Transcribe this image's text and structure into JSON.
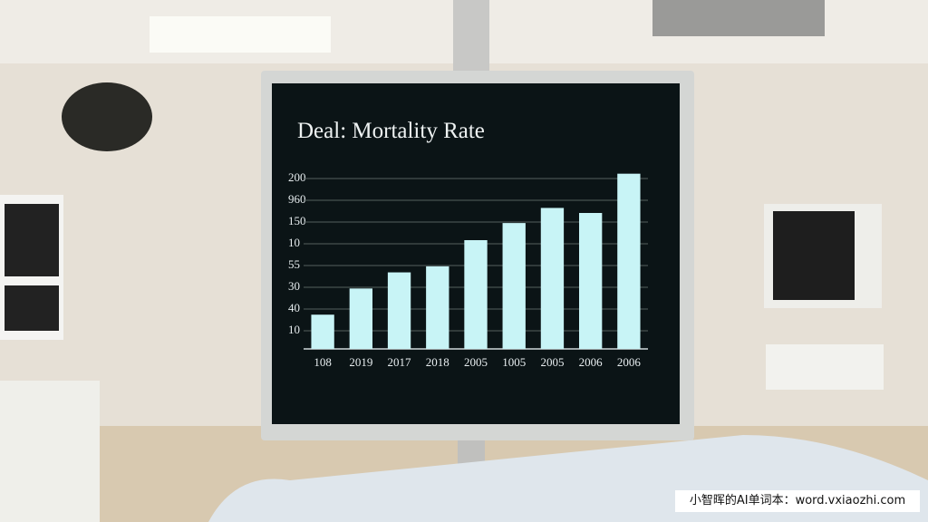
{
  "chart_data": {
    "type": "bar",
    "title": "Deal: Mortality Rate",
    "y_labels": [
      "200",
      "960",
      "150",
      "10",
      "55",
      "30",
      "40",
      "10"
    ],
    "categories": [
      "108",
      "2019",
      "2017",
      "2018",
      "2005",
      "1005",
      "2005",
      "2006",
      "2006"
    ],
    "values": [
      1.7,
      3.0,
      3.8,
      4.1,
      5.4,
      6.25,
      7.0,
      6.75,
      8.7
    ],
    "ylim": [
      0,
      9
    ],
    "color": "#c8f4f6",
    "grid": true
  },
  "watermark": "小智晖的AI单词本：word.vxiaozhi.com"
}
